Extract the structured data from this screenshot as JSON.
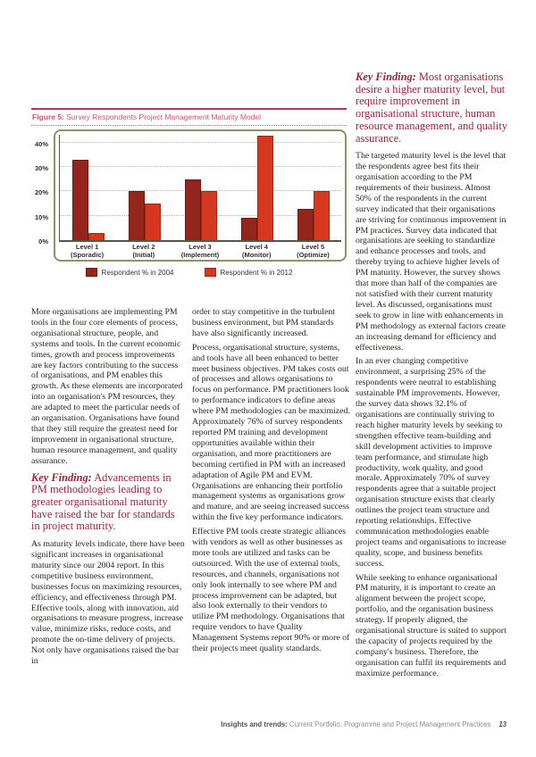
{
  "figure": {
    "label": "Figure 5:",
    "caption": " Survey Respondents Project Management Maturity Model"
  },
  "chart_data": {
    "type": "bar",
    "title": "Survey Respondents Project Management Maturity Model",
    "categories": [
      "Level 1",
      "Level 2",
      "Level 3",
      "Level 4",
      "Level 5"
    ],
    "category_sublabels": [
      "(Sporadic)",
      "(Initial)",
      "(Implement)",
      "(Monitor)",
      "(Optimize)"
    ],
    "series": [
      {
        "name": "Respondent % in 2004",
        "values": [
          33,
          20,
          25,
          9,
          13
        ],
        "color": "#94251c",
        "border": "#6e170f"
      },
      {
        "name": "Respondent % in 2012",
        "values": [
          3,
          15,
          20,
          43,
          20
        ],
        "color": "#d6371f",
        "border": "#a3280f"
      }
    ],
    "ylim": [
      0,
      44
    ],
    "yticks": [
      0,
      10,
      20,
      30,
      40
    ],
    "ytick_labels": [
      "0%",
      "10%",
      "20%",
      "30%",
      "40%"
    ],
    "grid": "horizontal-dotted",
    "legend_position": "bottom",
    "accent_colors": {
      "caption_red": "#d9536a",
      "frame_olive": "#90906c"
    }
  },
  "columns": {
    "left": [
      {
        "type": "p",
        "text": "More organisations are implementing PM tools in the four core elements of process, organisational structure, people, and systems and tools.  In the current economic times, growth and process improvements are key factors contributing to the success of organisations, and PM enables this growth.  As these elements are incorporated into an organisation's PM resources, they are adapted to meet the particular needs of an organisation. Organisations have found that they still require the greatest need for improvement in organisational structure, human resource management, and quality assurance."
      },
      {
        "type": "kf",
        "lead": "Key Finding:",
        "text": " Advancements in PM methodologies leading to greater organisational maturity have raised the bar for standards in project maturity."
      },
      {
        "type": "p",
        "text": "As maturity levels indicate, there have been significant increases in organisational maturity since our 2004 report.  In this competitive business environment, businesses focus on maximizing resources, efficiency, and effectiveness through PM.  Effective tools, along with innovation, aid organisations to measure progress, increase value, minimize risks, reduce costs, and promote the on-time delivery of projects.  Not only have organisations raised the bar in"
      }
    ],
    "middle": [
      {
        "type": "p",
        "text": "order to stay competitive in the turbulent business environment, but PM standards have also significantly increased."
      },
      {
        "type": "p",
        "text": "Process, organisational structure, systems, and tools have all been enhanced to better meet business objectives. PM takes costs out of processes and allows organisations to focus on performance.  PM practitioners look to performance indicators to define areas where PM methodologies can be maximized. Approximately 76% of survey respondents reported PM training and development opportunities available within their organisation, and more practitioners are becoming certified in PM with an increased adaptation of Agile PM and EVM. Organisations are enhancing their portfolio management systems as organisations grow and mature, and are seeing increased success within the five key performance indicators."
      },
      {
        "type": "p",
        "text": "Effective PM tools create strategic alliances with vendors as well as other businesses as more tools are utilized and tasks can be outsourced. With the use of external tools, resources, and channels, organisations not only look internally to see where PM and process improvement can be adapted, but also look externally to their vendors to utilize PM methodology. Organisations that require vendors to have Quality Management Systems report 90% or more of their projects meet quality standards."
      }
    ],
    "right": [
      {
        "type": "kf",
        "lead": "Key Finding:",
        "text": " Most organisations desire a higher maturity level, but require improvement in organisational structure, human resource management, and quality assurance."
      },
      {
        "type": "p",
        "text": "The targeted maturity level is the level that the respondents agree best fits their organisation according to the PM requirements of their business. Almost 50% of the respondents in the current survey indicated that their organisations are striving for continuous improvement in PM practices.  Survey data indicated that organisations are seeking to standardize and enhance processes and tools, and thereby trying to achieve higher levels of PM maturity.  However, the survey shows that more than half of the companies are not satisfied with their current maturity level. As discussed, organisations must seek to grow in line with enhancements in PM methodology as external factors create an increasing demand for efficiency and effectiveness."
      },
      {
        "type": "p",
        "text": "In an ever changing competitive environment, a surprising 25% of the respondents were neutral to establishing sustainable PM improvements. However, the survey data shows 32.1% of organisations are continually striving to reach higher maturity levels by seeking to strengthen effective team-building and skill development activities to improve team performance, and stimulate high productivity, work quality, and good morale.  Approximately 70% of survey respondents agree that a suitable project organisation structure exists that clearly outlines the project team structure and reporting relationships. Effective communication methodologies enable project teams and organisations to increase quality, scope, and business benefits success."
      },
      {
        "type": "p",
        "text": "While seeking to enhance organisational PM maturity, it is important to create an alignment between the project scope, portfolio, and the organisation business strategy.  If properly aligned, the organisational structure is suited to support the capacity of projects required by the company's business.  Therefore, the organisation can fulfil its requirements and maximize performance."
      }
    ]
  },
  "footer": {
    "bold": "Insights and trends:",
    "rest": " Current Portfolio, Programme and Project Management Practices",
    "page_number": "13"
  }
}
